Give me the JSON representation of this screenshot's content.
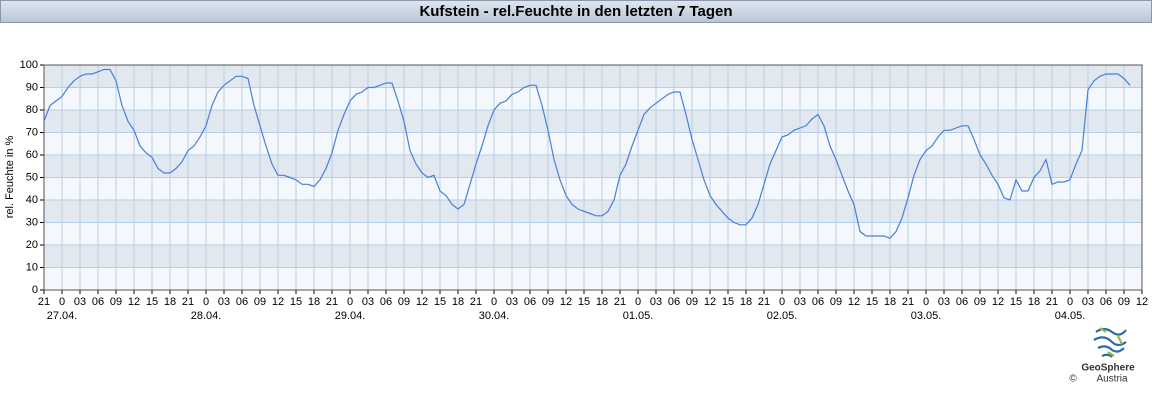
{
  "chart_data": {
    "type": "line",
    "title": "Kufstein - rel.Feuchte in den letzten 7 Tagen",
    "ylabel": "rel. Feuchte in %",
    "color": "#4a7fd8",
    "grid": true,
    "xlim": [
      -3,
      180
    ],
    "ylim": [
      0,
      100
    ],
    "yticks": [
      0,
      10,
      20,
      30,
      40,
      50,
      60,
      70,
      80,
      90,
      100
    ],
    "xticks": [
      {
        "value": -3,
        "label": "21"
      },
      {
        "value": 0,
        "label": "0"
      },
      {
        "value": 3,
        "label": "03"
      },
      {
        "value": 6,
        "label": "06"
      },
      {
        "value": 9,
        "label": "09"
      },
      {
        "value": 12,
        "label": "12"
      },
      {
        "value": 15,
        "label": "15"
      },
      {
        "value": 18,
        "label": "18"
      },
      {
        "value": 21,
        "label": "21"
      },
      {
        "value": 24,
        "label": "0"
      },
      {
        "value": 27,
        "label": "03"
      },
      {
        "value": 30,
        "label": "06"
      },
      {
        "value": 33,
        "label": "09"
      },
      {
        "value": 36,
        "label": "12"
      },
      {
        "value": 39,
        "label": "15"
      },
      {
        "value": 42,
        "label": "18"
      },
      {
        "value": 45,
        "label": "21"
      },
      {
        "value": 48,
        "label": "0"
      },
      {
        "value": 51,
        "label": "03"
      },
      {
        "value": 54,
        "label": "06"
      },
      {
        "value": 57,
        "label": "09"
      },
      {
        "value": 60,
        "label": "12"
      },
      {
        "value": 63,
        "label": "15"
      },
      {
        "value": 66,
        "label": "18"
      },
      {
        "value": 69,
        "label": "21"
      },
      {
        "value": 72,
        "label": "0"
      },
      {
        "value": 75,
        "label": "03"
      },
      {
        "value": 78,
        "label": "06"
      },
      {
        "value": 81,
        "label": "09"
      },
      {
        "value": 84,
        "label": "12"
      },
      {
        "value": 87,
        "label": "15"
      },
      {
        "value": 90,
        "label": "18"
      },
      {
        "value": 93,
        "label": "21"
      },
      {
        "value": 96,
        "label": "0"
      },
      {
        "value": 99,
        "label": "03"
      },
      {
        "value": 102,
        "label": "06"
      },
      {
        "value": 105,
        "label": "09"
      },
      {
        "value": 108,
        "label": "12"
      },
      {
        "value": 111,
        "label": "15"
      },
      {
        "value": 114,
        "label": "18"
      },
      {
        "value": 117,
        "label": "21"
      },
      {
        "value": 120,
        "label": "0"
      },
      {
        "value": 123,
        "label": "03"
      },
      {
        "value": 126,
        "label": "06"
      },
      {
        "value": 129,
        "label": "09"
      },
      {
        "value": 132,
        "label": "12"
      },
      {
        "value": 135,
        "label": "15"
      },
      {
        "value": 138,
        "label": "18"
      },
      {
        "value": 141,
        "label": "21"
      },
      {
        "value": 144,
        "label": "0"
      },
      {
        "value": 147,
        "label": "03"
      },
      {
        "value": 150,
        "label": "06"
      },
      {
        "value": 153,
        "label": "09"
      },
      {
        "value": 156,
        "label": "12"
      },
      {
        "value": 159,
        "label": "15"
      },
      {
        "value": 162,
        "label": "18"
      },
      {
        "value": 165,
        "label": "21"
      },
      {
        "value": 168,
        "label": "0"
      },
      {
        "value": 171,
        "label": "03"
      },
      {
        "value": 174,
        "label": "06"
      },
      {
        "value": 177,
        "label": "09"
      },
      {
        "value": 180,
        "label": "12"
      }
    ],
    "date_ticks": [
      {
        "value": 0,
        "label": "27.04."
      },
      {
        "value": 24,
        "label": "28.04."
      },
      {
        "value": 48,
        "label": "29.04."
      },
      {
        "value": 72,
        "label": "30.04."
      },
      {
        "value": 96,
        "label": "01.05."
      },
      {
        "value": 120,
        "label": "02.05."
      },
      {
        "value": 144,
        "label": "03.05."
      },
      {
        "value": 168,
        "label": "04.05."
      }
    ],
    "x": [
      -3,
      -2,
      -1,
      0,
      1,
      2,
      3,
      4,
      5,
      6,
      7,
      8,
      9,
      10,
      11,
      12,
      13,
      14,
      15,
      16,
      17,
      18,
      19,
      20,
      21,
      22,
      23,
      24,
      25,
      26,
      27,
      28,
      29,
      30,
      31,
      32,
      33,
      34,
      35,
      36,
      37,
      38,
      39,
      40,
      41,
      42,
      43,
      44,
      45,
      46,
      47,
      48,
      49,
      50,
      51,
      52,
      53,
      54,
      55,
      56,
      57,
      58,
      59,
      60,
      61,
      62,
      63,
      64,
      65,
      66,
      67,
      68,
      69,
      70,
      71,
      72,
      73,
      74,
      75,
      76,
      77,
      78,
      79,
      80,
      81,
      82,
      83,
      84,
      85,
      86,
      87,
      88,
      89,
      90,
      91,
      92,
      93,
      94,
      95,
      96,
      97,
      98,
      99,
      100,
      101,
      102,
      103,
      104,
      105,
      106,
      107,
      108,
      109,
      110,
      111,
      112,
      113,
      114,
      115,
      116,
      117,
      118,
      119,
      120,
      121,
      122,
      123,
      124,
      125,
      126,
      127,
      128,
      129,
      130,
      131,
      132,
      133,
      134,
      135,
      136,
      137,
      138,
      139,
      140,
      141,
      142,
      143,
      144,
      145,
      146,
      147,
      148,
      149,
      150,
      151,
      152,
      153,
      154,
      155,
      156,
      157,
      158,
      159,
      160,
      161,
      162,
      163,
      164,
      165,
      166,
      167,
      168,
      169,
      170,
      171,
      172,
      173,
      174,
      175,
      176,
      177,
      178
    ],
    "values": [
      75,
      82,
      84,
      86,
      90,
      93,
      95,
      96,
      96,
      97,
      98,
      98,
      93,
      82,
      75,
      71,
      64,
      61,
      59,
      54,
      52,
      52,
      54,
      57,
      62,
      64,
      68,
      73,
      82,
      88,
      91,
      93,
      95,
      95,
      94,
      82,
      73,
      64,
      56,
      51,
      51,
      50,
      49,
      47,
      47,
      46,
      49,
      54,
      61,
      71,
      78,
      84,
      87,
      88,
      90,
      90,
      91,
      92,
      92,
      84,
      75,
      62,
      56,
      52,
      50,
      51,
      44,
      42,
      38,
      36,
      38,
      47,
      56,
      64,
      73,
      80,
      83,
      84,
      87,
      88,
      90,
      91,
      91,
      82,
      71,
      58,
      49,
      42,
      38,
      36,
      35,
      34,
      33,
      33,
      35,
      40,
      51,
      56,
      64,
      71,
      78,
      81,
      83,
      85,
      87,
      88,
      88,
      78,
      67,
      58,
      49,
      42,
      38,
      35,
      32,
      30,
      29,
      29,
      32,
      38,
      47,
      56,
      62,
      68,
      69,
      71,
      72,
      73,
      76,
      78,
      73,
      64,
      58,
      51,
      44,
      38,
      26,
      24,
      24,
      24,
      24,
      23,
      26,
      32,
      41,
      51,
      58,
      62,
      64,
      68,
      71,
      71,
      72,
      73,
      73,
      67,
      60,
      56,
      51,
      47,
      41,
      40,
      49,
      44,
      44,
      50,
      53,
      58,
      47,
      48,
      48,
      49,
      56,
      62,
      89,
      93,
      95,
      96,
      96,
      96,
      94,
      91
    ]
  },
  "footer": {
    "brand": "GeoSphere",
    "sub": "Austria",
    "copyright": "©"
  }
}
